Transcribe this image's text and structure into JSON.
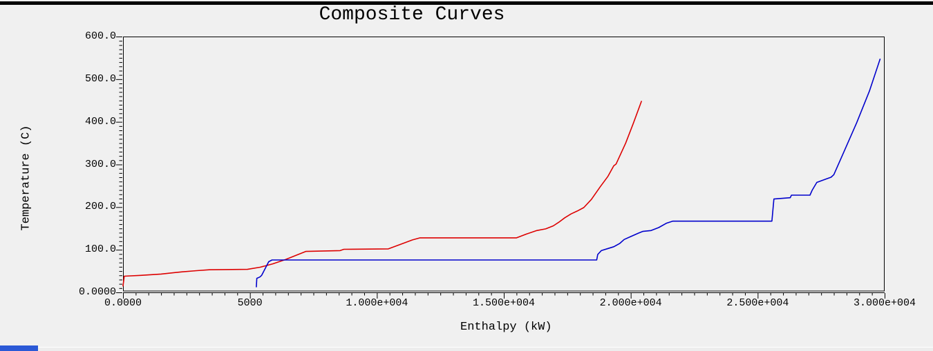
{
  "chart_data": {
    "type": "line",
    "title": "Composite Curves",
    "xlabel": "Enthalpy (kW)",
    "ylabel": "Temperature (C)",
    "xlim": [
      0,
      30000
    ],
    "ylim": [
      0,
      600
    ],
    "grid": false,
    "legend": "none",
    "x_minor_step": 500,
    "x_major_step": 5000,
    "y_minor_step": 10,
    "y_major_step": 100,
    "x_ticks": [
      {
        "value": 0,
        "label": "0.0000"
      },
      {
        "value": 5000,
        "label": "5000"
      },
      {
        "value": 10000,
        "label": "1.000e+004"
      },
      {
        "value": 15000,
        "label": "1.500e+004"
      },
      {
        "value": 20000,
        "label": "2.000e+004"
      },
      {
        "value": 25000,
        "label": "2.500e+004"
      },
      {
        "value": 30000,
        "label": "3.000e+004"
      }
    ],
    "y_ticks": [
      {
        "value": 0,
        "label": "0.0000"
      },
      {
        "value": 100,
        "label": "100.0"
      },
      {
        "value": 200,
        "label": "200.0"
      },
      {
        "value": 300,
        "label": "300.0"
      },
      {
        "value": 400,
        "label": "400.0"
      },
      {
        "value": 500,
        "label": "500.0"
      },
      {
        "value": 600,
        "label": "600.0"
      }
    ],
    "series": [
      {
        "name": "red-curve",
        "color": "#dd0000",
        "points": [
          [
            0,
            15
          ],
          [
            50,
            38
          ],
          [
            700,
            40
          ],
          [
            1500,
            43
          ],
          [
            2300,
            48
          ],
          [
            2900,
            51
          ],
          [
            3400,
            53
          ],
          [
            4900,
            54
          ],
          [
            5400,
            59
          ],
          [
            5900,
            67
          ],
          [
            6400,
            77
          ],
          [
            6900,
            89
          ],
          [
            7200,
            96
          ],
          [
            8550,
            98
          ],
          [
            8700,
            101
          ],
          [
            10450,
            102
          ],
          [
            10900,
            112
          ],
          [
            11400,
            123
          ],
          [
            11700,
            128
          ],
          [
            15500,
            128
          ],
          [
            15900,
            137
          ],
          [
            16300,
            145
          ],
          [
            16650,
            149
          ],
          [
            16950,
            156
          ],
          [
            17200,
            166
          ],
          [
            17400,
            175
          ],
          [
            17650,
            184
          ],
          [
            17900,
            191
          ],
          [
            18150,
            199
          ],
          [
            18450,
            218
          ],
          [
            18800,
            248
          ],
          [
            19100,
            272
          ],
          [
            19330,
            297
          ],
          [
            19420,
            301
          ],
          [
            19800,
            350
          ],
          [
            20100,
            396
          ],
          [
            20420,
            448
          ]
        ]
      },
      {
        "name": "blue-curve",
        "color": "#0000cc",
        "points": [
          [
            5250,
            13
          ],
          [
            5270,
            33
          ],
          [
            5390,
            36
          ],
          [
            5460,
            40
          ],
          [
            5740,
            72
          ],
          [
            5870,
            76
          ],
          [
            18660,
            76
          ],
          [
            18700,
            89
          ],
          [
            18840,
            98
          ],
          [
            19110,
            103
          ],
          [
            19330,
            107
          ],
          [
            19570,
            115
          ],
          [
            19740,
            124
          ],
          [
            20000,
            131
          ],
          [
            20300,
            139
          ],
          [
            20470,
            143
          ],
          [
            20800,
            145
          ],
          [
            21100,
            152
          ],
          [
            21400,
            162
          ],
          [
            21650,
            167
          ],
          [
            25560,
            167
          ],
          [
            25640,
            219
          ],
          [
            26280,
            222
          ],
          [
            26330,
            228
          ],
          [
            27060,
            228
          ],
          [
            27150,
            240
          ],
          [
            27330,
            258
          ],
          [
            27700,
            266
          ],
          [
            27890,
            270
          ],
          [
            28000,
            276
          ],
          [
            28400,
            330
          ],
          [
            28900,
            398
          ],
          [
            29400,
            472
          ],
          [
            29820,
            547
          ]
        ]
      }
    ]
  },
  "colors": {
    "background": "#f0f0f0",
    "frame": "#000000",
    "top_bar": "#000000",
    "curve_red": "#dd0000",
    "curve_blue": "#0000cc",
    "taskbar_fragment": "#2b59d6"
  }
}
